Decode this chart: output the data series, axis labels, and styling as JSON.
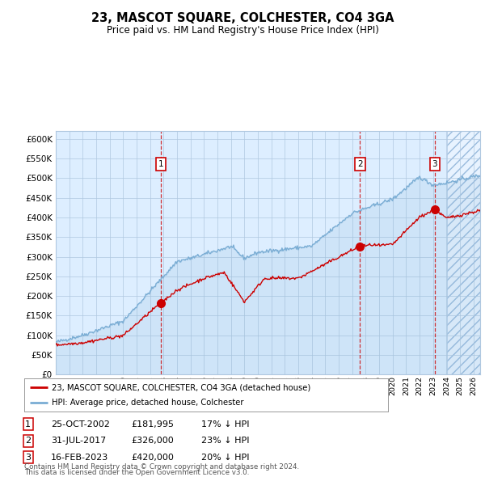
{
  "title": "23, MASCOT SQUARE, COLCHESTER, CO4 3GA",
  "subtitle": "Price paid vs. HM Land Registry's House Price Index (HPI)",
  "hpi_color": "#7aadd4",
  "price_color": "#cc0000",
  "plot_bg": "#ddeeff",
  "grid_color": "#b0c8e0",
  "ylim": [
    0,
    620000
  ],
  "yticks": [
    0,
    50000,
    100000,
    150000,
    200000,
    250000,
    300000,
    350000,
    400000,
    450000,
    500000,
    550000,
    600000
  ],
  "transactions": [
    {
      "date_label": "25-OCT-2002",
      "date_x": 2002.81,
      "price": 181995,
      "label": "1",
      "pct": "17% ↓ HPI"
    },
    {
      "date_label": "31-JUL-2017",
      "date_x": 2017.58,
      "price": 326000,
      "label": "2",
      "pct": "23% ↓ HPI"
    },
    {
      "date_label": "16-FEB-2023",
      "date_x": 2023.13,
      "price": 420000,
      "label": "3",
      "pct": "20% ↓ HPI"
    }
  ],
  "legend_label_red": "23, MASCOT SQUARE, COLCHESTER, CO4 3GA (detached house)",
  "legend_label_blue": "HPI: Average price, detached house, Colchester",
  "footnote_line1": "Contains HM Land Registry data © Crown copyright and database right 2024.",
  "footnote_line2": "This data is licensed under the Open Government Licence v3.0.",
  "xmin": 1995.0,
  "xmax": 2026.5,
  "future_start": 2024.0
}
